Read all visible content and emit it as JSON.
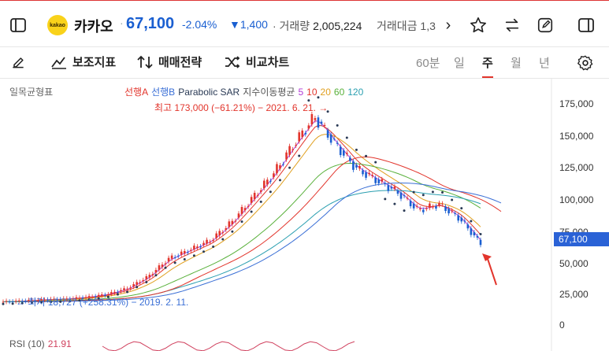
{
  "header": {
    "logo_text": "kakao",
    "stock_name": "카카오",
    "separator": "·",
    "price": "67,100",
    "change_pct": "-2.04%",
    "change_abs": "▼1,400",
    "volume_label": "· 거래량",
    "volume_value": "2,005,224",
    "amount_label": "거래대금 1,3",
    "more_arrow": "›"
  },
  "toolbar": {
    "aux_label": "보조지표",
    "draw_label": "매매전략",
    "compare_label": "비교차트",
    "periods": [
      "60분",
      "일",
      "주",
      "월",
      "년"
    ],
    "active_period": "주"
  },
  "legend": {
    "ichimoku": "일목균형표",
    "leading_a": "선행A",
    "leading_b": "선행B",
    "sar": "Parabolic SAR",
    "ma_label": "지수이동평균",
    "ma_5": "5",
    "ma_10": "10",
    "ma_20": "20",
    "ma_60": "60",
    "ma_120": "120"
  },
  "annotations": {
    "high": "최고 173,000 (−61.21%) − 2021. 6. 21. →",
    "low": "← 최저 18,727 (+258.31%) − 2019. 2. 11."
  },
  "rsi": {
    "label": "RSI (10)",
    "value": "21.91"
  },
  "current_price_tag": "67,100",
  "colors": {
    "up": "#e2352c",
    "down": "#1a5fd1",
    "accent": "#e2352c"
  },
  "chart_data": {
    "type": "line",
    "title": "",
    "yticks": [
      "175,000",
      "150,000",
      "125,000",
      "100,000",
      "75,000",
      "50,000",
      "25,000",
      "0"
    ],
    "ylim": [
      0,
      185000
    ],
    "series": [
      {
        "name": "Price",
        "values": [
          18727,
          19500,
          20500,
          21000,
          22500,
          25000,
          30000,
          40000,
          55000,
          62000,
          70000,
          85000,
          105000,
          125000,
          150000,
          173000,
          150000,
          130000,
          120000,
          110000,
          95000,
          100000,
          88000,
          67100
        ]
      }
    ],
    "grid": false
  }
}
